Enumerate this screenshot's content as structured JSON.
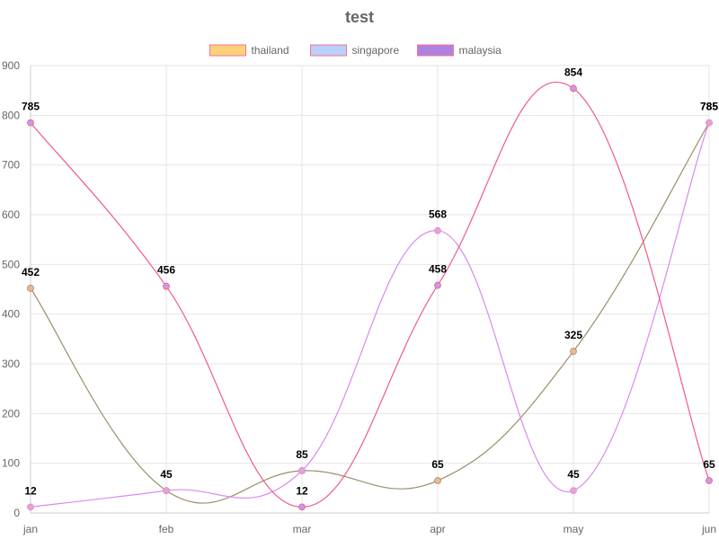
{
  "chart_data": {
    "type": "line",
    "title": "test",
    "categories": [
      "jan",
      "feb",
      "mar",
      "apr",
      "may",
      "jun"
    ],
    "ylim": [
      0,
      900
    ],
    "yticks": [
      0,
      100,
      200,
      300,
      400,
      500,
      600,
      700,
      800,
      900
    ],
    "grid": true,
    "legend_position": "top",
    "series": [
      {
        "name": "thailand",
        "values": [
          452,
          45,
          85,
          65,
          325,
          785
        ],
        "line_color": "#9b8f6a",
        "point_color": "#f3b48e",
        "legend_fill": "#f9d27a",
        "legend_border": "#ff6f91"
      },
      {
        "name": "singapore",
        "values": [
          12,
          45,
          85,
          568,
          45,
          785
        ],
        "line_color": "#d98af0",
        "point_color": "#e9a3c8",
        "legend_fill": "#b9d0fb",
        "legend_border": "#ff6f91"
      },
      {
        "name": "malaysia",
        "values": [
          785,
          456,
          12,
          458,
          854,
          65
        ],
        "line_color": "#ef5b8c",
        "point_color": "#c79ae8",
        "legend_fill": "#ae82e0",
        "legend_border": "#ff6f91"
      }
    ],
    "point_labels": [
      [
        "785",
        "456",
        "12",
        "458",
        "854",
        "785"
      ],
      [
        "452",
        "45",
        "85",
        "568",
        "325",
        "785"
      ],
      [
        "12",
        "",
        "",
        "65",
        "45",
        "65"
      ]
    ]
  }
}
